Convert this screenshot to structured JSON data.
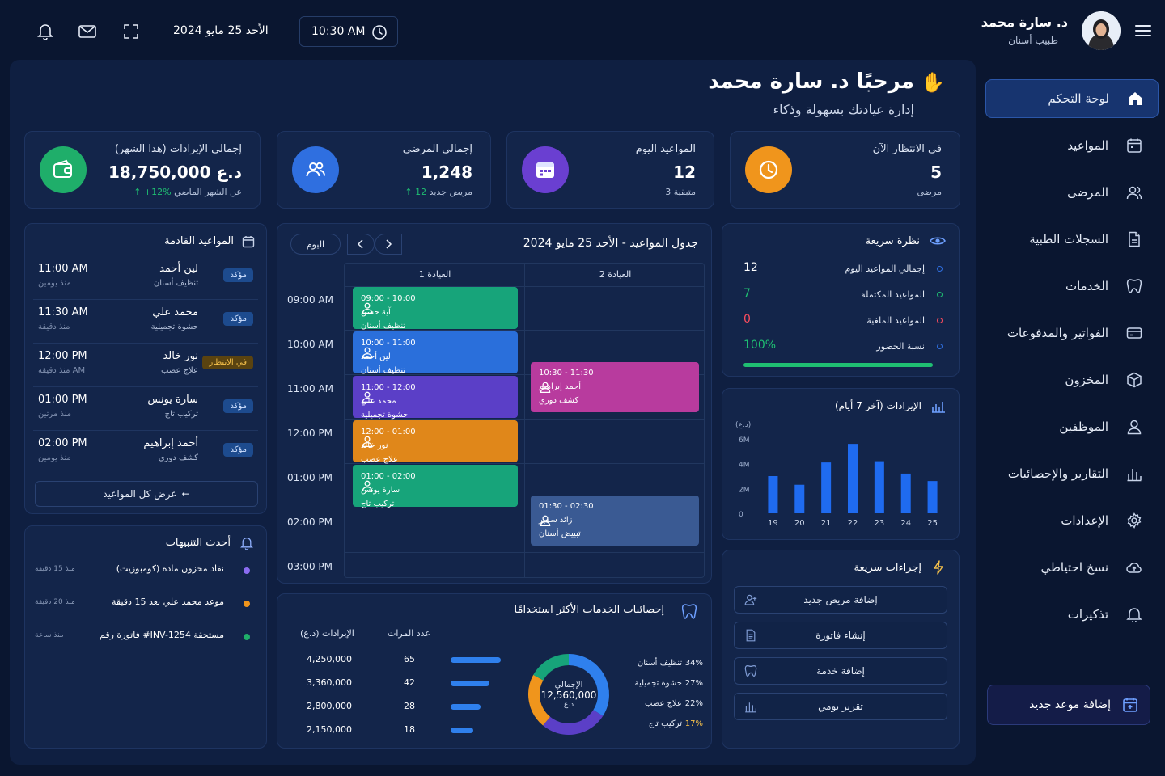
{
  "header": {
    "user_name": "د. سارة محمد",
    "user_role": "طبيب أسنان",
    "date": "الأحد 25 مايو 2024",
    "time": "10:30 AM"
  },
  "sidebar": {
    "items": [
      {
        "label": "لوحة التحكم",
        "icon": "home-icon",
        "active": true
      },
      {
        "label": "المواعيد",
        "icon": "calendar-icon"
      },
      {
        "label": "المرضى",
        "icon": "users-icon"
      },
      {
        "label": "السجلات الطبية",
        "icon": "file-icon"
      },
      {
        "label": "الخدمات",
        "icon": "tooth-icon"
      },
      {
        "label": "الفواتير والمدفوعات",
        "icon": "card-icon"
      },
      {
        "label": "المخزون",
        "icon": "box-icon"
      },
      {
        "label": "الموظفين",
        "icon": "user-icon"
      },
      {
        "label": "التقارير والإحصائيات",
        "icon": "chart-icon"
      },
      {
        "label": "الإعدادات",
        "icon": "gear-icon"
      },
      {
        "label": "نسخ احتياطي",
        "icon": "cloud-icon"
      },
      {
        "label": "تذكيرات",
        "icon": "bell-icon"
      }
    ],
    "new_appointment": "إضافة موعد جديد"
  },
  "welcome": {
    "title": "مرحبًا د. سارة محمد",
    "subtitle": "إدارة عيادتك بسهولة وذكاء"
  },
  "stats": [
    {
      "title": "في الانتظار الآن",
      "value": "5",
      "sub": "مرضى",
      "color": "#f0951c"
    },
    {
      "title": "المواعيد اليوم",
      "value": "12",
      "sub": "3 متبقية",
      "color": "#6a3fd1"
    },
    {
      "title": "إجمالي المرضى",
      "value": "1,248",
      "sub_up": "12",
      "sub": "مريض جديد",
      "color": "#2f6fe0"
    },
    {
      "title": "إجمالي الإيرادات (هذا الشهر)",
      "value": "18,750,000 د.ع",
      "sub_up": "+12%",
      "sub": "عن الشهر الماضي",
      "color": "#1fae6a"
    }
  ],
  "upcoming": {
    "title": "المواعيد القادمة",
    "items": [
      {
        "name": "لين أحمد",
        "service": "تنظيف أسنان",
        "time": "11:00 AM",
        "ago": "منذ يومين",
        "status": "مؤكد",
        "kind": "ok"
      },
      {
        "name": "محمد علي",
        "service": "حشوة تجميلية",
        "time": "11:30 AM",
        "ago": "منذ دقيقة",
        "status": "مؤكد",
        "kind": "ok"
      },
      {
        "name": "نور خالد",
        "service": "علاج عصب",
        "time": "12:00 PM",
        "ago": "منذ دقيقة AM",
        "status": "في الانتظار",
        "kind": "wait"
      },
      {
        "name": "سارة يونس",
        "service": "تركيب تاج",
        "time": "01:00 PM",
        "ago": "منذ مرتين",
        "status": "مؤكد",
        "kind": "ok"
      },
      {
        "name": "أحمد إبراهيم",
        "service": "كشف دوري",
        "time": "02:00 PM",
        "ago": "منذ يومين",
        "status": "مؤكد",
        "kind": "ok"
      }
    ],
    "view_all": "عرض كل المواعيد"
  },
  "notifications": {
    "title": "أحدث التنبيهات",
    "items": [
      {
        "text": "نفاد مخزون مادة (كومبوزيت)",
        "time": "منذ 15 دقيقة",
        "color": "#8b6cf0"
      },
      {
        "text": "موعد محمد علي بعد 15 دقيقة",
        "time": "منذ 20 دقيقة",
        "color": "#f0951c"
      },
      {
        "text": "فاتورة رقم #INV-1254 مستحقة",
        "time": "منذ ساعة",
        "color": "#1fae6a"
      }
    ]
  },
  "schedule": {
    "title": "جدول المواعيد - الأحد 25 مايو 2024",
    "today_button": "اليوم",
    "columns": [
      "العيادة 1",
      "العيادة 2"
    ],
    "hours": [
      "09:00 AM",
      "10:00 AM",
      "11:00 AM",
      "12:00 PM",
      "01:00 PM",
      "02:00 PM",
      "03:00 PM"
    ],
    "events": [
      {
        "time": "09:00 - 10:00",
        "name": "آية حسن",
        "service": "تنظيف أسنان",
        "color": "#17a47a"
      },
      {
        "time": "10:00 - 11:00",
        "name": "لين أحمد",
        "service": "تنظيف أسنان",
        "color": "#2a6fdb"
      },
      {
        "time": "11:00 - 12:00",
        "name": "محمد علي",
        "service": "حشوة تجميلية",
        "color": "#5b3fc7"
      },
      {
        "time": "12:00 - 01:00",
        "name": "نور خالد",
        "service": "علاج عصب",
        "color": "#e0871a"
      },
      {
        "time": "01:00 - 02:00",
        "name": "سارة يونس",
        "service": "تركيب تاج",
        "color": "#17a47a"
      },
      {
        "time": "10:30 - 11:30",
        "name": "أحمد إبراهيم",
        "service": "كشف دوري",
        "color": "#b83b9e"
      },
      {
        "time": "01:30 - 02:30",
        "name": "زائد سمير",
        "service": "تبييض أسنان",
        "color": "#3a5a93"
      }
    ]
  },
  "quick_view": {
    "title": "نظرة سريعة",
    "items": [
      {
        "label": "إجمالي المواعيد اليوم",
        "value": "12",
        "color": "#ffffff",
        "dot": "#2f6fe0"
      },
      {
        "label": "المواعيد المكتملة",
        "value": "7",
        "color": "#1fbf72",
        "dot": "#1fbf72"
      },
      {
        "label": "المواعيد الملغية",
        "value": "0",
        "color": "#ff4d5e",
        "dot": "#ff4d5e"
      },
      {
        "label": "نسبة الحضور",
        "value": "100%",
        "color": "#1fbf72",
        "dot": "#2f6fe0"
      }
    ],
    "attendance_fraction": 1.0
  },
  "revenue": {
    "title": "الإيرادات (آخر 7 أيام)",
    "unit": "(د.ع)",
    "y_ticks": [
      "6M",
      "4M",
      "2M",
      "0"
    ]
  },
  "chart_data": {
    "type": "bar",
    "title": "الإيرادات (آخر 7 أيام)",
    "ylabel": "(د.ع)",
    "categories": [
      "19",
      "20",
      "21",
      "22",
      "23",
      "24",
      "25"
    ],
    "values": [
      3.0,
      2.3,
      4.1,
      5.6,
      4.2,
      3.2,
      2.6
    ],
    "value_unit": "M",
    "ylim": [
      0,
      6
    ],
    "color": "#1f6bf0"
  },
  "services": {
    "title": "إحصائيات الخدمات الأكثر استخدامًا",
    "col_revenue": "الإيرادات (د.ع)",
    "col_count": "عدد المرات",
    "rows": [
      {
        "revenue": "4,250,000",
        "count": "65",
        "bar": 1.0
      },
      {
        "revenue": "3,360,000",
        "count": "42",
        "bar": 0.77
      },
      {
        "revenue": "2,800,000",
        "count": "28",
        "bar": 0.6
      },
      {
        "revenue": "2,150,000",
        "count": "18",
        "bar": 0.45
      }
    ],
    "donut_label": "الإجمالي",
    "donut_total": "12,560,000",
    "donut_unit": "د.ع",
    "legend": [
      {
        "pct": "34%",
        "label": "تنظيف أسنان",
        "value": 34,
        "color": "#2f80ed"
      },
      {
        "pct": "27%",
        "label": "حشوة تجميلية",
        "value": 27,
        "color": "#5b3fc7"
      },
      {
        "pct": "22%",
        "label": "علاج عصب",
        "value": 22,
        "color": "#f0951c"
      },
      {
        "pct": "17%",
        "label": "تركيب تاج",
        "value": 17,
        "color": "#17a47a"
      }
    ]
  },
  "quick_actions": {
    "title": "إجراءات سريعة",
    "items": [
      {
        "label": "إضافة مريض جديد",
        "icon": "user-plus-icon"
      },
      {
        "label": "إنشاء فاتورة",
        "icon": "invoice-icon"
      },
      {
        "label": "إضافة خدمة",
        "icon": "tooth-icon"
      },
      {
        "label": "تقرير يومي",
        "icon": "chart-icon"
      }
    ]
  }
}
